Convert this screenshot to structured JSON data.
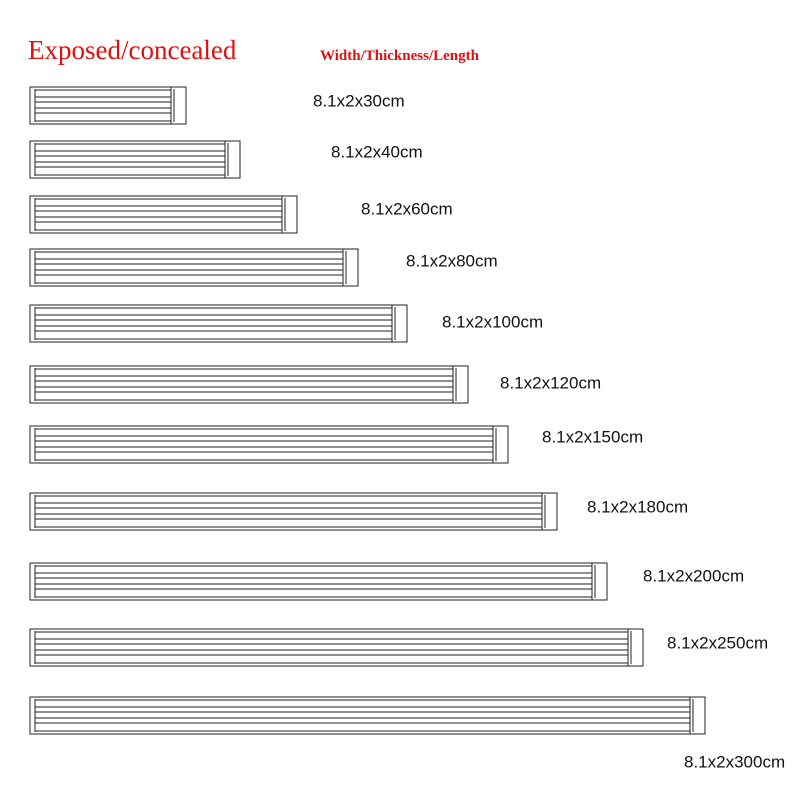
{
  "header": {
    "title": "Exposed/concealed",
    "subtitle": "Width/Thickness/Length"
  },
  "items": [
    {
      "label": "8.1x2x30cm"
    },
    {
      "label": "8.1x2x40cm"
    },
    {
      "label": "8.1x2x60cm"
    },
    {
      "label": "8.1x2x80cm"
    },
    {
      "label": "8.1x2x100cm"
    },
    {
      "label": "8.1x2x120cm"
    },
    {
      "label": "8.1x2x150cm"
    },
    {
      "label": "8.1x2x180cm"
    },
    {
      "label": "8.1x2x200cm"
    },
    {
      "label": "8.1x2x250cm"
    },
    {
      "label": "8.1x2x300cm"
    }
  ]
}
